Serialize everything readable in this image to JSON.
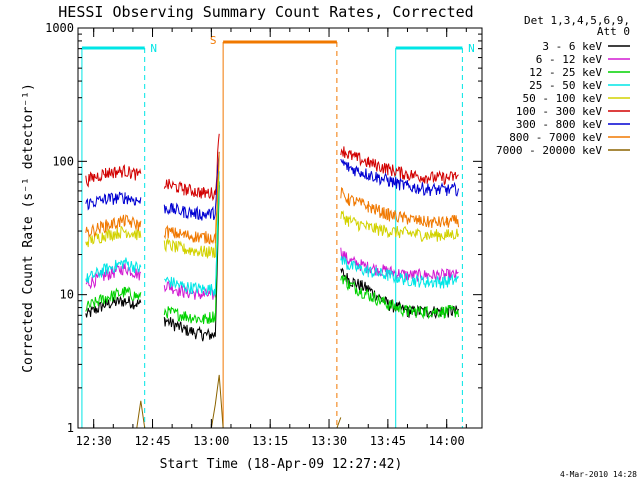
{
  "chart_data": {
    "type": "line",
    "title": "HESSI Observing Summary Count Rates, Corrected",
    "xlabel": "Start Time (18-Apr-09 12:27:42)",
    "ylabel": "Corrected Count Rate (s⁻¹ detector⁻¹)",
    "yscale": "log",
    "ylim": [
      1,
      1000
    ],
    "xlim": [
      "12:26",
      "14:09"
    ],
    "x_ticks": [
      "12:30",
      "12:45",
      "13:00",
      "13:15",
      "13:30",
      "13:45",
      "14:00"
    ],
    "y_ticks": [
      "1",
      "10",
      "100",
      "1000"
    ],
    "legend_header": [
      "Det 1,3,4,5,6,9,",
      "Att 0"
    ],
    "legend_position": "right",
    "footer": "4-Mar-2010 14:28",
    "gap": [
      "13:03",
      "13:32"
    ],
    "series": [
      {
        "name": "3 - 6 keV",
        "color": "#000000",
        "x": [
          "12:28",
          "12:33",
          "12:38",
          "12:42",
          "12:48",
          "12:53",
          "12:58",
          "13:01",
          "13:02",
          "13:33",
          "13:35",
          "13:40",
          "13:45",
          "13:50",
          "13:55",
          "14:00",
          "14:03"
        ],
        "y": [
          7,
          8.5,
          9,
          8.5,
          6.5,
          5.5,
          5,
          5,
          60,
          15,
          13,
          11,
          8.5,
          7.5,
          7.5,
          7.5,
          7.5
        ]
      },
      {
        "name": "6 - 12 keV",
        "color": "#d21ad2",
        "x": [
          "12:28",
          "12:33",
          "12:38",
          "12:42",
          "12:48",
          "12:53",
          "12:58",
          "13:01",
          "13:02",
          "13:33",
          "13:35",
          "13:40",
          "13:45",
          "13:50",
          "13:55",
          "14:00",
          "14:03"
        ],
        "y": [
          12,
          14,
          16,
          14,
          12,
          10.5,
          10,
          10,
          75,
          21,
          18,
          16,
          15,
          14,
          14,
          14,
          14
        ]
      },
      {
        "name": "12 - 25 keV",
        "color": "#00d200",
        "x": [
          "12:28",
          "12:33",
          "12:38",
          "12:42",
          "12:48",
          "12:53",
          "12:58",
          "13:01",
          "13:02",
          "13:33",
          "13:35",
          "13:40",
          "13:45",
          "13:50",
          "13:55",
          "14:00",
          "14:03"
        ],
        "y": [
          8,
          9.5,
          10.5,
          9.5,
          7.5,
          7,
          6.5,
          7,
          65,
          14,
          12,
          10,
          8.5,
          7.5,
          7.5,
          7.5,
          7.5
        ]
      },
      {
        "name": "25 - 50 keV",
        "color": "#00e6e6",
        "x": [
          "12:28",
          "12:33",
          "12:38",
          "12:42",
          "12:48",
          "12:53",
          "12:58",
          "13:01",
          "13:02",
          "13:33",
          "13:35",
          "13:40",
          "13:45",
          "13:50",
          "13:55",
          "14:00",
          "14:03"
        ],
        "y": [
          13,
          15.5,
          17.5,
          15.5,
          13,
          11.5,
          11,
          11,
          80,
          19,
          16.5,
          15,
          14,
          13,
          12.5,
          12.5,
          13
        ]
      },
      {
        "name": "50 - 100 keV",
        "color": "#d2d200",
        "x": [
          "12:28",
          "12:33",
          "12:38",
          "12:42",
          "12:48",
          "12:53",
          "12:58",
          "13:01",
          "13:02",
          "13:33",
          "13:35",
          "13:40",
          "13:45",
          "13:50",
          "13:55",
          "14:00",
          "14:03"
        ],
        "y": [
          25,
          28,
          30,
          28,
          24,
          22,
          21,
          21,
          100,
          40,
          36,
          32,
          30,
          29,
          28,
          28,
          29
        ]
      },
      {
        "name": "100 - 300 keV",
        "color": "#d20000",
        "x": [
          "12:28",
          "12:33",
          "12:38",
          "12:42",
          "12:48",
          "12:53",
          "12:58",
          "13:01",
          "13:02",
          "13:33",
          "13:35",
          "13:40",
          "13:45",
          "13:50",
          "13:55",
          "14:00",
          "14:03"
        ],
        "y": [
          72,
          82,
          85,
          78,
          68,
          62,
          58,
          58,
          160,
          125,
          112,
          98,
          88,
          80,
          76,
          75,
          78
        ]
      },
      {
        "name": "300 - 800 keV",
        "color": "#0000d2",
        "x": [
          "12:28",
          "12:33",
          "12:38",
          "12:42",
          "12:48",
          "12:53",
          "12:58",
          "13:01",
          "13:02",
          "13:33",
          "13:35",
          "13:40",
          "13:45",
          "13:50",
          "13:55",
          "14:00",
          "14:03"
        ],
        "y": [
          48,
          52,
          54,
          50,
          45,
          42,
          40,
          41,
          120,
          100,
          90,
          80,
          72,
          65,
          62,
          61,
          62
        ]
      },
      {
        "name": "800 - 7000 keV",
        "color": "#f07800",
        "x": [
          "12:28",
          "12:33",
          "12:38",
          "12:42",
          "12:48",
          "12:53",
          "12:58",
          "13:01",
          "13:02",
          "13:33",
          "13:35",
          "13:40",
          "13:45",
          "13:50",
          "13:55",
          "14:00",
          "14:03"
        ],
        "y": [
          29,
          33,
          36,
          33,
          30,
          28,
          27,
          27,
          110,
          58,
          52,
          46,
          40,
          37,
          35,
          35,
          36
        ]
      },
      {
        "name": "7000 - 20000 keV",
        "color": "#8c6400",
        "x": [
          "12:28",
          "12:41",
          "12:42",
          "12:43",
          "13:00",
          "13:01",
          "13:02",
          "13:03",
          "13:32",
          "13:33"
        ],
        "y": [
          1,
          1,
          1.6,
          1,
          1,
          1.5,
          2.5,
          1,
          1,
          1.2
        ]
      }
    ],
    "annotations": [
      {
        "label": "N",
        "color": "#00e6e6",
        "style": "night",
        "intervals": [
          [
            "12:27",
            "12:43"
          ],
          [
            "13:47",
            "14:04"
          ]
        ]
      },
      {
        "label": "S",
        "color": "#f07800",
        "style": "saa",
        "intervals": [
          [
            "13:03",
            "13:32"
          ]
        ]
      }
    ]
  }
}
